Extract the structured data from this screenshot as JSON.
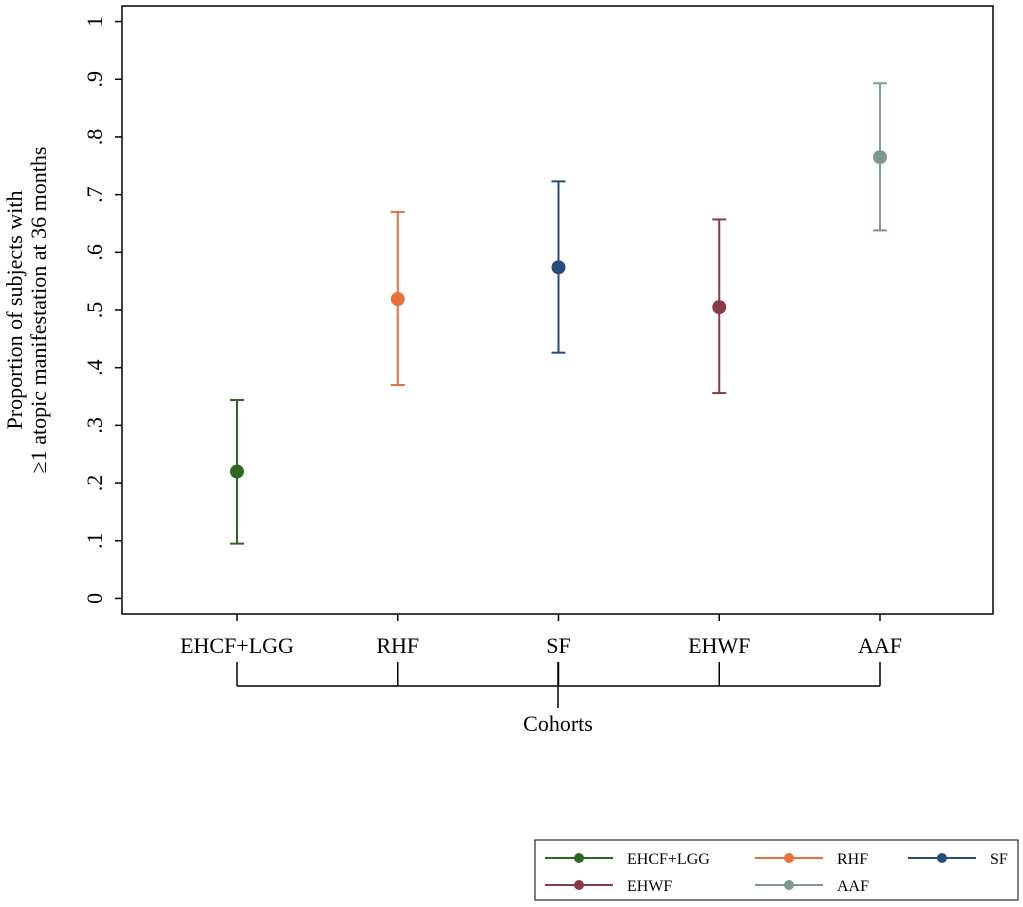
{
  "chart_data": {
    "type": "errorbar",
    "ylabel": [
      "Proportion of subjects with",
      "≥1 atopic manifestation at 36 months"
    ],
    "xlabel": "Cohorts",
    "categories": [
      "EHCF+LGG",
      "RHF",
      "SF",
      "EHWF",
      "AAF"
    ],
    "ylim": [
      -0.027,
      1.027
    ],
    "yticks": [
      0,
      {
        "value": 0.1,
        "label": ".1"
      },
      {
        "value": 0.2,
        "label": ".2"
      },
      {
        "value": 0.3,
        "label": ".3"
      },
      {
        "value": 0.4,
        "label": ".4"
      },
      {
        "value": 0.5,
        "label": ".5"
      },
      {
        "value": 0.6,
        "label": ".6"
      },
      {
        "value": 0.7,
        "label": ".7"
      },
      {
        "value": 0.8,
        "label": ".8"
      },
      {
        "value": 0.9,
        "label": ".9"
      },
      1
    ],
    "series": [
      {
        "name": "EHCF+LGG",
        "color": "#2d6a1f",
        "values": [
          0.22,
          null,
          null,
          null,
          null
        ],
        "lower": [
          0.095,
          null,
          null,
          null,
          null
        ],
        "upper": [
          0.344,
          null,
          null,
          null,
          null
        ]
      },
      {
        "name": "RHF",
        "color": "#e8703a",
        "values": [
          null,
          0.519,
          null,
          null,
          null
        ],
        "lower": [
          null,
          0.37,
          null,
          null,
          null
        ],
        "upper": [
          null,
          0.67,
          null,
          null,
          null
        ]
      },
      {
        "name": "SF",
        "color": "#274b7a",
        "values": [
          null,
          null,
          0.574,
          null,
          null
        ],
        "lower": [
          null,
          null,
          0.426,
          null,
          null
        ],
        "upper": [
          null,
          null,
          0.723,
          null,
          null
        ]
      },
      {
        "name": "EHWF",
        "color": "#8b3a45",
        "values": [
          null,
          null,
          null,
          0.505,
          null
        ],
        "lower": [
          null,
          null,
          null,
          0.356,
          null
        ],
        "upper": [
          null,
          null,
          null,
          0.657,
          null
        ]
      },
      {
        "name": "AAF",
        "color": "#7f9a8c",
        "values": [
          null,
          null,
          null,
          null,
          0.765
        ],
        "lower": [
          null,
          null,
          null,
          null,
          0.638
        ],
        "upper": [
          null,
          null,
          null,
          null,
          0.893
        ]
      }
    ]
  }
}
